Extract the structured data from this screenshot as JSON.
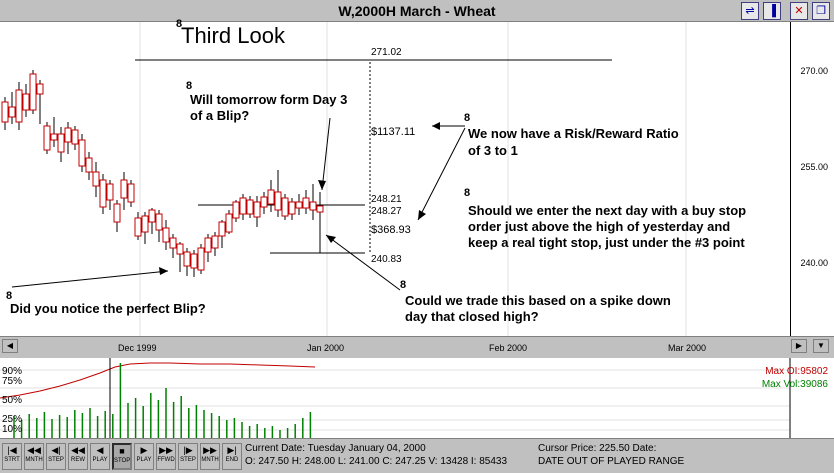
{
  "window": {
    "title": "W,2000H  March - Wheat"
  },
  "titlebar_icons": [
    "chart-settings-icon",
    "bar-style-icon",
    "close-icon",
    "restore-icon"
  ],
  "chart": {
    "heading": "Third Look",
    "y_ticks": [
      "270.00",
      "255.00",
      "240.00"
    ],
    "price_labels": {
      "top": "271.02",
      "high": "248.21",
      "current": "248.27",
      "low": "240.83"
    },
    "dollar_labels": {
      "risk_top": "$1137.11",
      "risk_bottom": "$368.93"
    },
    "annotations": {
      "tomorrow_1": "Will tomorrow form Day 3",
      "tomorrow_2": "of a Blip?",
      "ratio_1": "We now have a Risk/Reward Ratio",
      "ratio_2": "of 3 to 1",
      "enter_1": "Should we enter the next day with a buy stop",
      "enter_2": "order just above the high of yesterday and",
      "enter_3": "keep a real tight stop, just under the #3 point",
      "blip": "Did you notice the perfect Blip?",
      "spike_1": "Could we trade this based on a spike down",
      "spike_2": "day that closed high?"
    },
    "months": [
      "Dec 1999",
      "Jan 2000",
      "Feb 2000",
      "Mar 2000"
    ]
  },
  "lower_pane": {
    "pct_labels": [
      "90%",
      "75%",
      "50%",
      "25%",
      "10%"
    ],
    "max_oi": "Max OI:95802",
    "max_vol": "Max Vol:39086",
    "oi_color": "#c00000",
    "vol_color": "#008000"
  },
  "nav_buttons": [
    {
      "label": "STRT",
      "icon": "|◀"
    },
    {
      "label": "MNTH",
      "icon": "◀◀"
    },
    {
      "label": "STEP",
      "icon": "◀|"
    },
    {
      "label": "REW",
      "icon": "◀◀"
    },
    {
      "label": "PLAY",
      "icon": "◀"
    },
    {
      "label": "STOP",
      "icon": "■"
    },
    {
      "label": "PLAY",
      "icon": "▶"
    },
    {
      "label": "FFWD",
      "icon": "▶▶"
    },
    {
      "label": "STEP",
      "icon": "|▶"
    },
    {
      "label": "MNTH",
      "icon": "▶▶"
    },
    {
      "label": "END",
      "icon": "▶|"
    }
  ],
  "status": {
    "current_date": "Current Date: Tuesday January 04, 2000",
    "ohlc": "O: 247.50  H: 248.00  L: 241.00  C: 247.25  V: 13428  I: 85433",
    "cursor_price": "Cursor Price: 225.50  Date:",
    "date_range": "DATE OUT OF PLAYED RANGE"
  }
}
